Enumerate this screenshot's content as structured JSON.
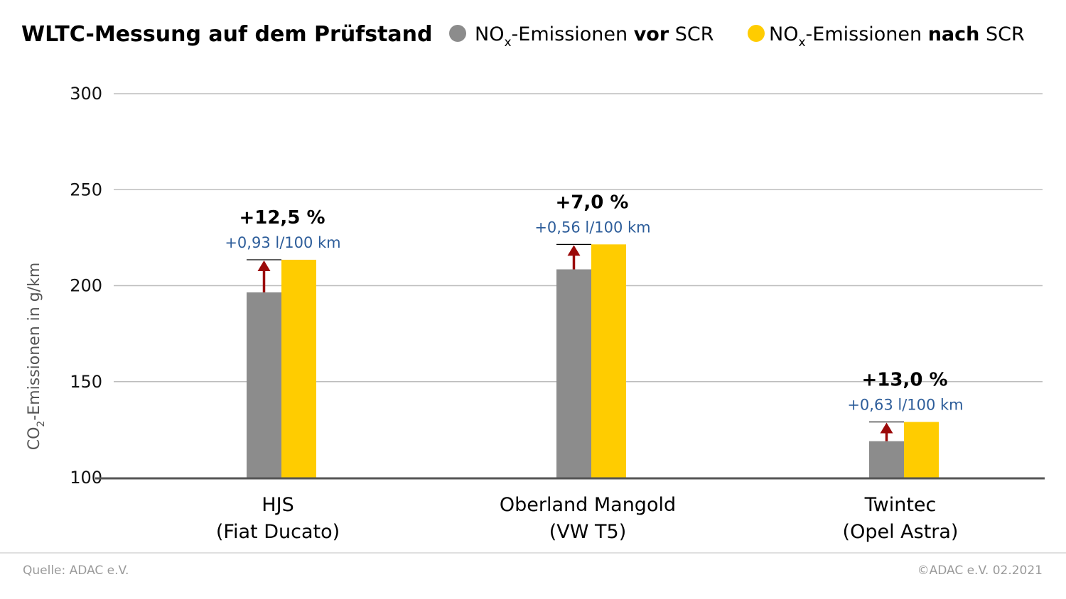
{
  "chart_data": {
    "type": "bar",
    "title": "WLTC-Messung auf dem Prüfstand",
    "ylabel_main": "CO",
    "ylabel_sub": "2",
    "ylabel_rest": "-Emissionen in g/km",
    "ylim": [
      100,
      300
    ],
    "yticks": [
      100,
      150,
      200,
      250,
      300
    ],
    "grid": true,
    "legend_placement": "top-right",
    "categories": [
      {
        "line1": "HJS",
        "line2": "(Fiat Ducato)"
      },
      {
        "line1": "Oberland Mangold",
        "line2": "(VW T5)"
      },
      {
        "line1": "Twintec",
        "line2": "(Opel Astra)"
      }
    ],
    "series": [
      {
        "name_parts": {
          "pre": "NO",
          "sub": "x",
          "mid": "-Emissionen ",
          "bold": "vor",
          "post": " SCR"
        },
        "color": "#8c8c8c",
        "values": [
          196.5,
          208.5,
          119
        ]
      },
      {
        "name_parts": {
          "pre": "NO",
          "sub": "x",
          "mid": "-Emissionen ",
          "bold": "nach",
          "post": " SCR"
        },
        "color": "#ffcc00",
        "values": [
          213.5,
          221.5,
          129
        ]
      }
    ],
    "annotations": [
      {
        "percent": "+12,5 %",
        "liters": "+0,93 l/100 km"
      },
      {
        "percent": "+7,0 %",
        "liters": "+0,56 l/100 km"
      },
      {
        "percent": "+13,0 %",
        "liters": "+0,63 l/100 km"
      }
    ],
    "arrow_color": "#9b0a0a"
  },
  "footer": {
    "source": "Quelle: ADAC e.V.",
    "copyright": "©ADAC e.V.  02.2021"
  }
}
